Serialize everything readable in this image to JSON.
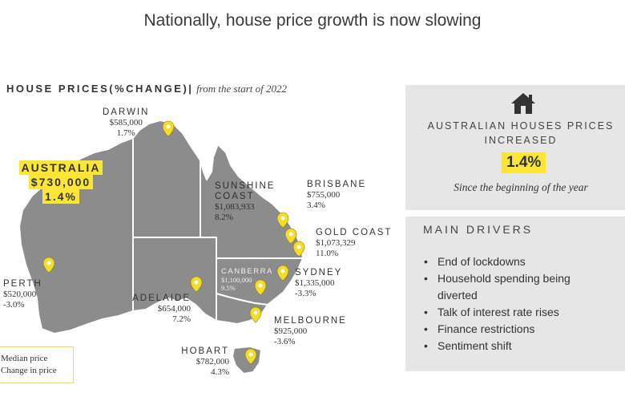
{
  "title": "Nationally, house price growth is now slowing",
  "section_heading": {
    "label": "HOUSE PRICES(%CHANGE)|",
    "subtitle": "from the start of 2022"
  },
  "australia": {
    "name": "AUSTRALIA",
    "price": "$730,000",
    "change": "1.4%"
  },
  "cities": [
    {
      "name": "DARWIN",
      "price": "$585,000",
      "change": "1.7%"
    },
    {
      "name": "SUNSHINE",
      "name2": "COAST",
      "price": "$1,083,933",
      "change": "8.2%"
    },
    {
      "name": "BRISBANE",
      "price": "$755,000",
      "change": "3.4%"
    },
    {
      "name": "GOLD COAST",
      "price": "$1,073,329",
      "change": "11.0%"
    },
    {
      "name": "CANBERRA",
      "price": "$1,100,000",
      "change": "9.5%"
    },
    {
      "name": "SYDNEY",
      "price": "$1,335,000",
      "change": "-3.3%"
    },
    {
      "name": "PERTH",
      "price": "$520,000",
      "change": "-3.0%"
    },
    {
      "name": "ADELAIDE",
      "price": "$654,000",
      "change": "7.2%"
    },
    {
      "name": "MELBOURNE",
      "price": "$925,000",
      "change": "-3.6%"
    },
    {
      "name": "HOBART",
      "price": "$782,000",
      "change": "4.3%"
    }
  ],
  "legend": {
    "line1": "Median price",
    "line2": "Change in price"
  },
  "summary": {
    "icon": "house-icon",
    "line1": "AUSTRALIAN HOUSES PRICES",
    "line2": "INCREASED",
    "value": "1.4%",
    "since": "Since the beginning of the year"
  },
  "drivers": {
    "title": "MAIN DRIVERS",
    "items": [
      "End of lockdowns",
      "Household spending being",
      "diverted",
      "Talk of interest rate rises",
      "Finance restrictions",
      "Sentiment shift"
    ]
  },
  "colors": {
    "map": "#8c8c8c",
    "highlight": "#fbe637",
    "panel": "#e6e6e6",
    "pin": "#f3dc2a"
  }
}
